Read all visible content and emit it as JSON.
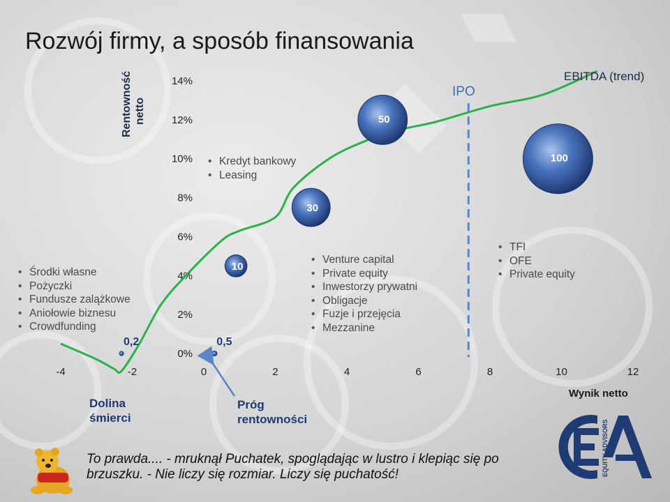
{
  "title": "Rozwój firmy, a sposób finansowania",
  "y_axis_label": [
    "Rentowność",
    "netto"
  ],
  "x_axis_label": "Wynik netto",
  "curve_label": "EBITDA (trend)",
  "ipo_label": "IPO",
  "lists": {
    "early": [
      "Środki własne",
      "Pożyczki",
      "Fundusze zalążkowe",
      "Aniołowie biznesu",
      "Crowdfunding"
    ],
    "debt": [
      "Kredyt bankowy",
      "Leasing"
    ],
    "growth": [
      "Venture capital",
      "Private equity",
      "Inwestorzy prywatni",
      "Obligacje",
      "Fuzje i przejęcia",
      "Mezzanine"
    ],
    "mature": [
      "TFI",
      "OFE",
      "Private equity"
    ]
  },
  "annotations": {
    "dolina": "Dolina śmierci",
    "prog": "Próg rentowności",
    "small_left": "0,2",
    "small_right": "0,5"
  },
  "quote": "To prawda.... - mruknął Puchatek, spoglądając w lustro i klepiąc się po brzuszku. - Nie liczy się rozmiar. Liczy się puchatość!",
  "logo": {
    "text": "EQUITY ADVISORS",
    "letters": "EA"
  },
  "colors": {
    "curve": "#27b34a",
    "bubble": "#3c62a8",
    "ipo_line": "#5a86c8",
    "arrow": "#5a86c8",
    "text_dark": "#1f3b73"
  },
  "chart_data": {
    "type": "bubble",
    "x": {
      "label": "Wynik netto",
      "range": [
        -4,
        12
      ],
      "ticks": [
        -4,
        -2,
        0,
        2,
        4,
        6,
        8,
        10,
        12
      ]
    },
    "y": {
      "label": "Rentowność netto",
      "range": [
        0,
        14
      ],
      "ticks": [
        0,
        2,
        4,
        6,
        8,
        10,
        12,
        14
      ],
      "tick_labels": [
        "0%",
        "2%",
        "4%",
        "6%",
        "8%",
        "10%",
        "12%",
        "14%"
      ]
    },
    "bubbles": [
      {
        "x": -2.3,
        "y": 0,
        "size": 0.2,
        "label": "0,2"
      },
      {
        "x": 0.3,
        "y": 0,
        "size": 0.5,
        "label": "0,5"
      },
      {
        "x": 0.9,
        "y": 4.5,
        "size": 10,
        "label": "10"
      },
      {
        "x": 3.0,
        "y": 7.5,
        "size": 30,
        "label": "30"
      },
      {
        "x": 5.0,
        "y": 12.0,
        "size": 50,
        "label": "50"
      },
      {
        "x": 9.9,
        "y": 10.0,
        "size": 100,
        "label": "100"
      }
    ],
    "trend": {
      "name": "EBITDA (trend)",
      "x": [
        -4.0,
        -3.0,
        -2.5,
        -2.3,
        -1.8,
        -1.2,
        -0.5,
        0.5,
        1.0,
        2.0,
        2.5,
        3.5,
        4.5,
        5.5,
        6.5,
        8.0,
        9.5,
        11.0
      ],
      "y": [
        0.5,
        -0.3,
        -0.8,
        -0.9,
        0.5,
        2.5,
        4.0,
        5.8,
        6.3,
        7.0,
        8.5,
        10.0,
        10.9,
        11.5,
        11.9,
        12.7,
        13.3,
        14.5
      ]
    },
    "ipo_x": 7.4
  }
}
